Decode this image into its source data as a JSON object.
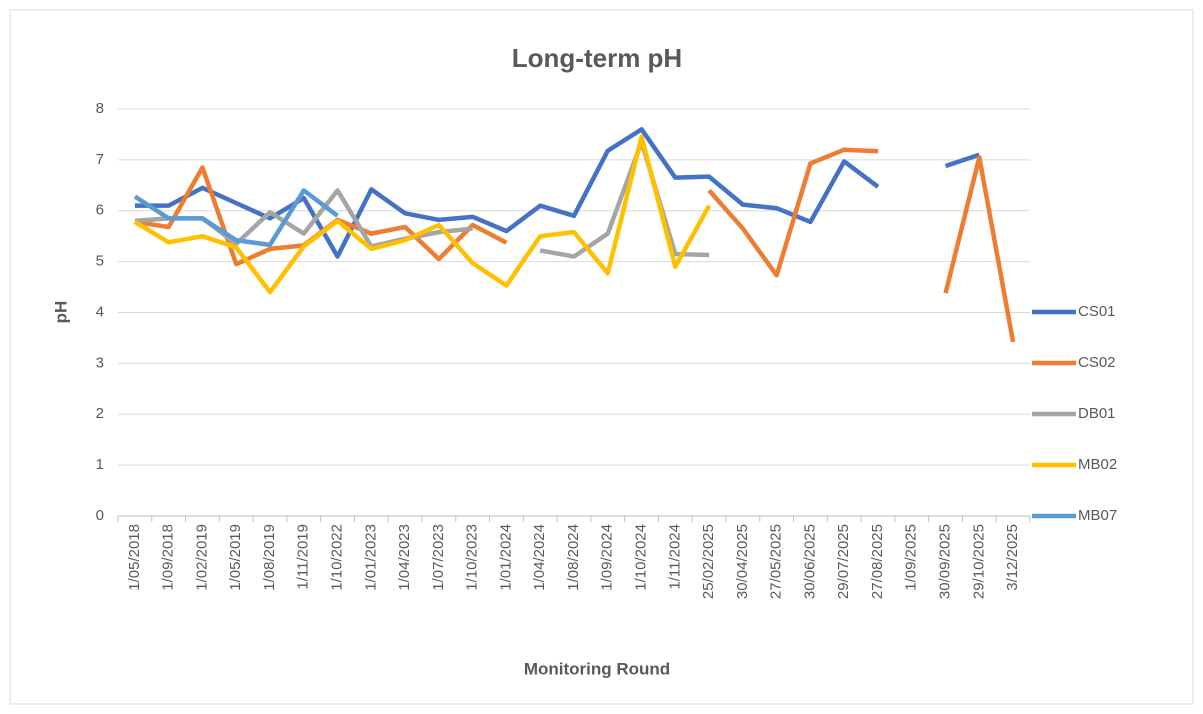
{
  "chart_data": {
    "type": "line",
    "title": "Long-term pH",
    "x_label": "Monitoring Round",
    "y_label": "pH",
    "categories": [
      "1/05/2018",
      "1/09/2018",
      "1/02/2019",
      "1/05/2019",
      "1/08/2019",
      "1/11/2019",
      "1/10/2022",
      "1/01/2023",
      "1/04/2023",
      "1/07/2023",
      "1/10/2023",
      "1/01/2024",
      "1/04/2024",
      "1/08/2024",
      "1/09/2024",
      "1/10/2024",
      "1/11/2024",
      "25/02/2025",
      "30/04/2025",
      "27/05/2025",
      "30/06/2025",
      "29/07/2025",
      "27/08/2025",
      "1/09/2025",
      "30/09/2025",
      "29/10/2025",
      "3/12/2025"
    ],
    "series": [
      {
        "name": "CS01",
        "color": "#4472c4",
        "values": [
          6.1,
          6.1,
          6.45,
          6.15,
          5.85,
          6.25,
          5.1,
          6.42,
          5.95,
          5.82,
          5.88,
          5.6,
          6.1,
          5.9,
          7.18,
          7.6,
          6.65,
          6.67,
          6.12,
          6.05,
          5.78,
          6.97,
          6.47,
          null,
          6.88,
          7.1,
          null
        ]
      },
      {
        "name": "CS02",
        "color": "#ed7d31",
        "values": [
          5.78,
          5.68,
          6.85,
          4.95,
          5.25,
          5.32,
          5.82,
          5.55,
          5.68,
          5.05,
          5.72,
          5.37,
          null,
          null,
          null,
          null,
          null,
          6.4,
          5.65,
          4.73,
          6.93,
          7.2,
          7.17,
          null,
          4.38,
          7.05,
          3.42
        ]
      },
      {
        "name": "DB01",
        "color": "#a5a5a5",
        "values": [
          5.8,
          5.85,
          5.85,
          5.35,
          5.97,
          5.55,
          6.4,
          5.3,
          5.45,
          5.58,
          5.65,
          null,
          5.22,
          5.1,
          5.55,
          7.35,
          5.15,
          5.13,
          null,
          null,
          null,
          null,
          null,
          null,
          null,
          null,
          null
        ]
      },
      {
        "name": "MB02",
        "color": "#ffc000",
        "values": [
          5.78,
          5.38,
          5.5,
          5.28,
          4.4,
          5.3,
          5.8,
          5.25,
          5.42,
          5.72,
          4.97,
          4.53,
          5.5,
          5.58,
          4.77,
          7.45,
          4.9,
          6.1,
          null,
          null,
          null,
          null,
          null,
          null,
          null,
          null,
          null
        ]
      },
      {
        "name": "MB07",
        "color": "#5b9bd5",
        "values": [
          6.28,
          5.85,
          5.85,
          5.42,
          5.33,
          6.4,
          5.9,
          null,
          null,
          null,
          null,
          null,
          null,
          null,
          null,
          null,
          null,
          null,
          null,
          null,
          null,
          null,
          null,
          null,
          null,
          null,
          null
        ]
      }
    ],
    "ylim": [
      0,
      8
    ],
    "yticks": [
      0,
      1,
      2,
      3,
      4,
      5,
      6,
      7,
      8
    ],
    "grid": true,
    "legend": "right"
  }
}
